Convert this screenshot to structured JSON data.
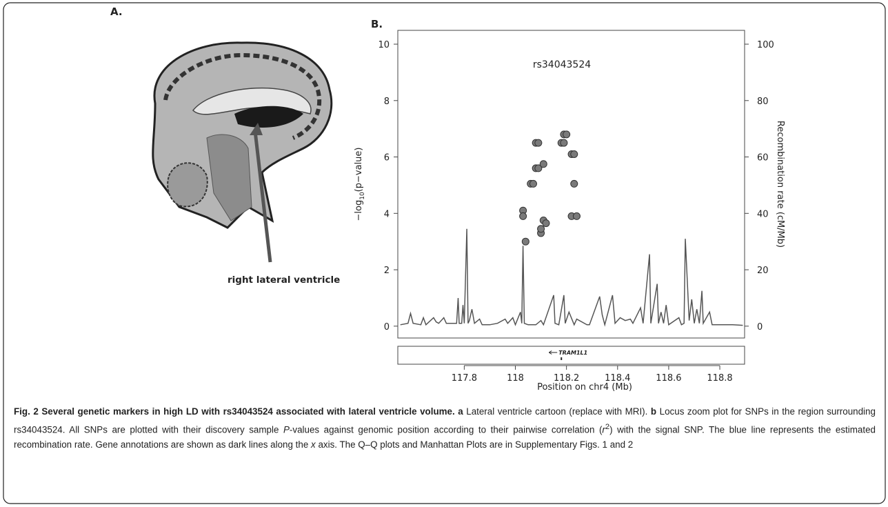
{
  "panel_a": {
    "label": "A.",
    "annotation": "right lateral ventricle"
  },
  "chart_data": {
    "type": "scatter",
    "panel_label": "B.",
    "title": "rs34043524",
    "ylabel": "−log",
    "ylabel_sub": "10",
    "ylabel_rest": "(p−value)",
    "y2label": "Recombination rate (cM/Mb)",
    "xlabel": "Position on chr4 (Mb)",
    "xlim": [
      117.54,
      118.897
    ],
    "xticks": [
      117.8,
      118,
      118.2,
      118.4,
      118.6,
      118.8
    ],
    "ylim": [
      -0.42,
      10.49
    ],
    "yticks": [
      0,
      2,
      4,
      6,
      8,
      10
    ],
    "y2lim": [
      -4.2,
      104.9
    ],
    "y2ticks": [
      0,
      20,
      40,
      60,
      80,
      100
    ],
    "points": {
      "color": "#7a7a7a",
      "x": [
        118.03,
        118.03,
        118.04,
        118.06,
        118.07,
        118.08,
        118.09,
        118.08,
        118.09,
        118.11,
        118.1,
        118.1,
        118.11,
        118.12,
        118.19,
        118.2,
        118.18,
        118.19,
        118.22,
        118.23,
        118.23,
        118.22,
        118.24
      ],
      "values": [
        4.1,
        3.9,
        3.0,
        5.05,
        5.05,
        5.6,
        5.6,
        6.5,
        6.5,
        5.75,
        3.3,
        3.45,
        3.75,
        3.65,
        6.8,
        6.8,
        6.5,
        6.5,
        6.1,
        6.1,
        5.05,
        3.9,
        3.9
      ]
    },
    "recombination": {
      "color": "#555555",
      "axis": "y2",
      "x": [
        117.55,
        117.58,
        117.59,
        117.6,
        117.63,
        117.64,
        117.65,
        117.68,
        117.69,
        117.7,
        117.72,
        117.73,
        117.75,
        117.77,
        117.776,
        117.78,
        117.79,
        117.795,
        117.8,
        117.81,
        117.815,
        117.82,
        117.83,
        117.84,
        117.86,
        117.87,
        117.9,
        117.93,
        117.96,
        117.97,
        117.99,
        118.0,
        118.02,
        118.025,
        118.03,
        118.035,
        118.05,
        118.08,
        118.1,
        118.11,
        118.15,
        118.155,
        118.17,
        118.19,
        118.195,
        118.21,
        118.23,
        118.24,
        118.28,
        118.29,
        118.33,
        118.34,
        118.35,
        118.38,
        118.39,
        118.41,
        118.43,
        118.45,
        118.46,
        118.49,
        118.5,
        118.525,
        118.53,
        118.555,
        118.56,
        118.57,
        118.58,
        118.59,
        118.6,
        118.64,
        118.65,
        118.66,
        118.665,
        118.68,
        118.69,
        118.7,
        118.71,
        118.72,
        118.73,
        118.735,
        118.76,
        118.77,
        118.8,
        118.85,
        118.89
      ],
      "values": [
        0.5,
        1,
        4.5,
        1,
        0.5,
        3,
        0.5,
        3,
        1.5,
        1,
        3,
        1,
        1,
        1,
        10,
        1,
        1,
        7.5,
        1,
        34.5,
        1,
        2,
        6,
        1,
        2.5,
        0.5,
        0.5,
        1,
        2.5,
        1,
        3,
        0.5,
        5,
        1,
        28.5,
        1,
        0.5,
        0.5,
        2,
        0.5,
        11,
        1,
        0.5,
        11,
        1,
        5,
        0.5,
        2.5,
        0.5,
        0.5,
        10.5,
        4,
        0.5,
        11,
        1,
        3,
        2,
        2.5,
        1,
        6.5,
        1,
        25.5,
        1,
        15,
        1,
        5,
        1,
        7.5,
        0.5,
        3,
        0.5,
        1,
        31,
        2,
        9.5,
        1,
        6,
        1,
        12.5,
        1,
        5,
        0.5,
        0.5,
        0.5,
        0.3
      ]
    },
    "genes": [
      {
        "name": "TRAM1L1",
        "x": 118.18
      }
    ]
  },
  "caption": {
    "title": "Fig. 2 Several genetic markers in high LD with rs34043524 associated with lateral ventricle volume.",
    "a_label": "a",
    "a_text": "Lateral ventricle cartoon (replace with MRI).",
    "b_label": "b",
    "b_text_1": "Locus zoom plot for SNPs in the region surrounding rs34043524. All SNPs are plotted with their discovery sample",
    "p": "P",
    "b_text_2": "-values against genomic position according to their pairwise correlation (",
    "r": "r",
    "r_sup": "2",
    "b_text_3": ") with the signal SNP. The blue line represents the estimated recombination rate. Gene annotations are shown as dark lines along the",
    "x": "x",
    "b_text_4": "axis. The Q–Q plots and Manhattan Plots are in Supplementary Figs. 1 and 2"
  }
}
